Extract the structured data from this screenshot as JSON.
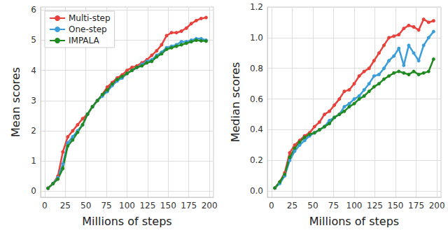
{
  "chart_data": [
    {
      "type": "line",
      "x_label": "Millions of steps",
      "y_label": "Mean scores",
      "x": [
        4,
        10,
        16,
        22,
        28,
        34,
        40,
        46,
        52,
        58,
        64,
        70,
        76,
        82,
        88,
        94,
        100,
        106,
        112,
        118,
        124,
        130,
        136,
        142,
        148,
        154,
        160,
        166,
        172,
        178,
        184,
        190,
        196
      ],
      "series": [
        {
          "name": "Multi-step",
          "color": "#e8413b",
          "marker": "circle",
          "line_style": "solid",
          "values": [
            0.1,
            0.25,
            0.5,
            1.3,
            1.8,
            2.0,
            2.2,
            2.4,
            2.55,
            2.8,
            3.0,
            3.2,
            3.45,
            3.6,
            3.75,
            3.85,
            4.0,
            4.1,
            4.15,
            4.25,
            4.35,
            4.5,
            4.65,
            4.85,
            5.15,
            5.25,
            5.25,
            5.3,
            5.4,
            5.55,
            5.65,
            5.72,
            5.75
          ]
        },
        {
          "name": "One-step",
          "color": "#3b9ed8",
          "marker": "circle",
          "line_style": "solid",
          "values": [
            0.1,
            0.25,
            0.45,
            0.9,
            1.6,
            1.8,
            2.0,
            2.2,
            2.55,
            2.8,
            3.0,
            3.15,
            3.3,
            3.5,
            3.65,
            3.75,
            3.9,
            4.0,
            4.1,
            4.2,
            4.3,
            4.35,
            4.5,
            4.6,
            4.75,
            4.8,
            4.85,
            4.95,
            4.95,
            5.0,
            5.05,
            5.05,
            5.0
          ]
        },
        {
          "name": "IMPALA",
          "color": "#1f8a1f",
          "marker": "circle",
          "line_style": "solid",
          "values": [
            0.1,
            0.25,
            0.4,
            0.75,
            1.5,
            1.7,
            1.95,
            2.2,
            2.55,
            2.8,
            3.0,
            3.2,
            3.35,
            3.55,
            3.7,
            3.8,
            3.9,
            4.0,
            4.1,
            4.15,
            4.25,
            4.3,
            4.45,
            4.55,
            4.7,
            4.75,
            4.8,
            4.85,
            4.9,
            4.95,
            5.0,
            4.98,
            4.97
          ]
        }
      ],
      "xlim": [
        -5,
        205
      ],
      "xticks": [
        0,
        25,
        50,
        75,
        100,
        125,
        150,
        175,
        200
      ],
      "ylim": [
        -0.2,
        6.1
      ],
      "yticks": [
        0,
        1,
        2,
        3,
        4,
        5,
        6
      ],
      "grid": true,
      "legend": "upper left"
    },
    {
      "type": "line",
      "x_label": "Millions of steps",
      "y_label": "Median scores",
      "x": [
        4,
        10,
        16,
        22,
        28,
        34,
        40,
        46,
        52,
        58,
        64,
        70,
        76,
        82,
        88,
        94,
        100,
        106,
        112,
        118,
        124,
        130,
        136,
        142,
        148,
        154,
        160,
        166,
        172,
        178,
        184,
        190,
        196
      ],
      "series": [
        {
          "name": "Multi-step",
          "color": "#e8413b",
          "marker": "circle",
          "line_style": "solid",
          "values": [
            0.02,
            0.06,
            0.12,
            0.25,
            0.3,
            0.33,
            0.36,
            0.38,
            0.42,
            0.45,
            0.5,
            0.52,
            0.56,
            0.6,
            0.65,
            0.66,
            0.7,
            0.75,
            0.78,
            0.8,
            0.85,
            0.9,
            0.95,
            1.0,
            1.01,
            1.02,
            1.06,
            1.08,
            1.07,
            1.05,
            1.12,
            1.1,
            1.11
          ]
        },
        {
          "name": "One-step",
          "color": "#3b9ed8",
          "marker": "circle",
          "line_style": "solid",
          "values": [
            0.02,
            0.05,
            0.1,
            0.2,
            0.26,
            0.3,
            0.33,
            0.36,
            0.38,
            0.4,
            0.42,
            0.46,
            0.48,
            0.5,
            0.55,
            0.57,
            0.6,
            0.62,
            0.66,
            0.7,
            0.75,
            0.76,
            0.8,
            0.85,
            0.88,
            0.93,
            0.82,
            0.95,
            0.9,
            0.85,
            0.95,
            1.0,
            1.04
          ]
        },
        {
          "name": "IMPALA",
          "color": "#1f8a1f",
          "marker": "circle",
          "line_style": "solid",
          "values": [
            0.02,
            0.06,
            0.11,
            0.22,
            0.28,
            0.32,
            0.35,
            0.37,
            0.38,
            0.4,
            0.42,
            0.44,
            0.48,
            0.5,
            0.52,
            0.55,
            0.57,
            0.6,
            0.62,
            0.65,
            0.68,
            0.7,
            0.73,
            0.75,
            0.77,
            0.78,
            0.77,
            0.76,
            0.78,
            0.76,
            0.77,
            0.78,
            0.86
          ]
        }
      ],
      "xlim": [
        -5,
        205
      ],
      "xticks": [
        0,
        25,
        50,
        75,
        100,
        125,
        150,
        175,
        200
      ],
      "ylim": [
        -0.04,
        1.2
      ],
      "yticks": [
        {
          "value": 0,
          "label": "0.0"
        },
        0.2,
        0.4,
        0.6,
        0.8,
        {
          "value": 1,
          "label": "1.0"
        },
        1.2
      ],
      "grid": true
    }
  ]
}
